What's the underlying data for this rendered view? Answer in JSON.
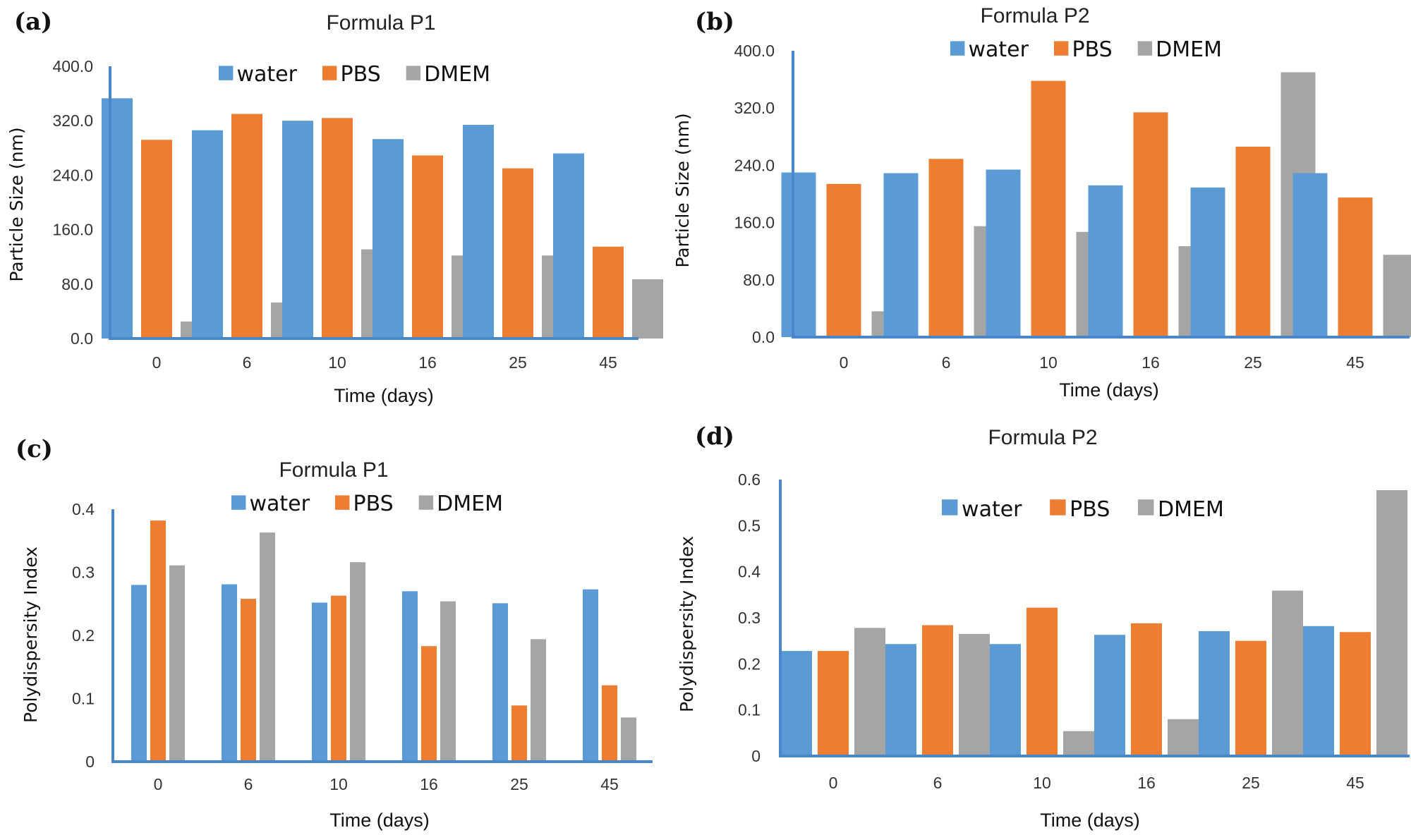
{
  "chart_data": [
    {
      "panel": "(a)",
      "type": "bar",
      "title": "Formula P1",
      "xlabel": "Time (days)",
      "ylabel": "Particle Size (nm)",
      "categories": [
        "0",
        "6",
        "10",
        "16",
        "25",
        "45"
      ],
      "yticks": [
        "0.0",
        "80.0",
        "160.0",
        "240.0",
        "320.0",
        "400.0"
      ],
      "ylim": [
        0,
        400
      ],
      "grid": false,
      "legend": "top-center",
      "series": [
        {
          "name": "water",
          "color": "#5B9BD5",
          "values": [
            353,
            306,
            320,
            293,
            314,
            272
          ]
        },
        {
          "name": "PBS",
          "color": "#ED7D31",
          "values": [
            292,
            330,
            324,
            269,
            250,
            135
          ]
        },
        {
          "name": "DMEM",
          "color": "#A5A5A5",
          "values": [
            25,
            53,
            131,
            122,
            122,
            87
          ]
        }
      ]
    },
    {
      "panel": "(b)",
      "type": "bar",
      "title": "Formula P2",
      "xlabel": "Time (days)",
      "ylabel": "Particle Size (nm)",
      "categories": [
        "0",
        "6",
        "10",
        "16",
        "25",
        "45"
      ],
      "yticks": [
        "0.0",
        "80.0",
        "160.0",
        "240.0",
        "320.0",
        "400.0"
      ],
      "ylim": [
        0,
        400
      ],
      "grid": false,
      "legend": "top-center",
      "series": [
        {
          "name": "water",
          "color": "#5B9BD5",
          "values": [
            230,
            229,
            234,
            212,
            209,
            229
          ]
        },
        {
          "name": "PBS",
          "color": "#ED7D31",
          "values": [
            214,
            249,
            358,
            314,
            266,
            195
          ]
        },
        {
          "name": "DMEM",
          "color": "#A5A5A5",
          "values": [
            36,
            155,
            147,
            127,
            370,
            115
          ]
        }
      ]
    },
    {
      "panel": "(c)",
      "type": "bar",
      "title": "Formula P1",
      "xlabel": "Time (days)",
      "ylabel": "Polydispersity Index",
      "categories": [
        "0",
        "6",
        "10",
        "16",
        "25",
        "45"
      ],
      "yticks": [
        "0",
        "0.1",
        "0.2",
        "0.3",
        "0.4"
      ],
      "ylim": [
        0,
        0.4
      ],
      "grid": false,
      "legend": "top-center",
      "series": [
        {
          "name": "water",
          "color": "#5B9BD5",
          "values": [
            0.28,
            0.281,
            0.252,
            0.27,
            0.251,
            0.273
          ]
        },
        {
          "name": "PBS",
          "color": "#ED7D31",
          "values": [
            0.382,
            0.258,
            0.263,
            0.183,
            0.089,
            0.121
          ]
        },
        {
          "name": "DMEM",
          "color": "#A5A5A5",
          "values": [
            0.311,
            0.363,
            0.316,
            0.254,
            0.194,
            0.07
          ]
        }
      ]
    },
    {
      "panel": "(d)",
      "type": "bar",
      "title": "Formula P2",
      "xlabel": "Time (days)",
      "ylabel": "Polydispersity Index",
      "categories": [
        "0",
        "6",
        "10",
        "16",
        "25",
        "45"
      ],
      "yticks": [
        "0",
        "0.1",
        "0.2",
        "0.3",
        "0.4",
        "0.5",
        "0.6"
      ],
      "ylim": [
        0,
        0.6
      ],
      "grid": false,
      "legend": "top-center",
      "series": [
        {
          "name": "water",
          "color": "#5B9BD5",
          "values": [
            0.228,
            0.243,
            0.243,
            0.263,
            0.271,
            0.282
          ]
        },
        {
          "name": "PBS",
          "color": "#ED7D31",
          "values": [
            0.228,
            0.284,
            0.322,
            0.288,
            0.25,
            0.269
          ]
        },
        {
          "name": "DMEM",
          "color": "#A5A5A5",
          "values": [
            0.278,
            0.265,
            0.054,
            0.08,
            0.359,
            0.577
          ]
        }
      ]
    }
  ]
}
